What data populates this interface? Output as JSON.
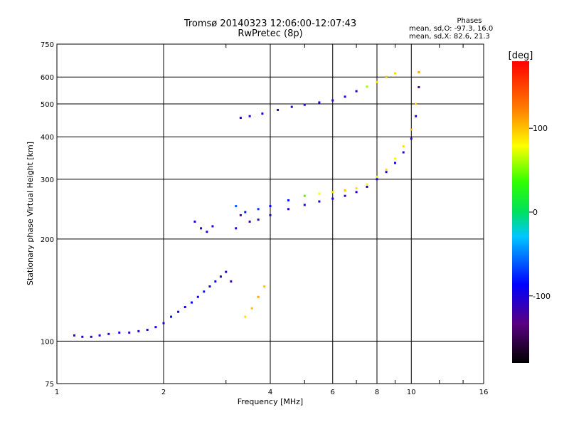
{
  "chart_data": {
    "type": "scatter",
    "title": "Tromsø 20140323 12:06:00-12:07:43",
    "subtitle": "RwPretec (8p)",
    "xlabel": "Frequency [MHz]",
    "ylabel": "Stationary phase Virtual Height [km]",
    "x_scale": "log",
    "y_scale": "log",
    "xlim": [
      1,
      16
    ],
    "ylim": [
      75,
      750
    ],
    "x_ticks": [
      1,
      2,
      4,
      6,
      8,
      10,
      16
    ],
    "x_tick_labels": [
      "1",
      "2",
      "4",
      "6",
      "8",
      "10",
      "16"
    ],
    "y_ticks": [
      75,
      100,
      200,
      300,
      400,
      500,
      600,
      750
    ],
    "y_tick_labels": [
      "75",
      "100",
      "200",
      "300",
      "400",
      "500",
      "600",
      "750"
    ],
    "grid": true,
    "colorbar": {
      "label": "[deg]",
      "range": [
        -180,
        180
      ],
      "ticks": [
        -100,
        0,
        100
      ],
      "tick_labels": [
        "-100",
        "0",
        "100"
      ]
    },
    "phase_stats": {
      "header": "Phases",
      "line_o": "mean, sd,O: -97.3, 16.0",
      "line_x": "mean, sd,X:  82.6, 21.3"
    },
    "series": [
      {
        "values": [
          [
            1.12,
            104,
            -110
          ],
          [
            1.18,
            103,
            -105
          ],
          [
            1.25,
            103,
            -112
          ],
          [
            1.32,
            104,
            -108
          ],
          [
            1.4,
            105,
            -110
          ],
          [
            1.5,
            106,
            -100
          ],
          [
            1.6,
            106,
            -115
          ],
          [
            1.7,
            107,
            -105
          ],
          [
            1.8,
            108,
            -110
          ],
          [
            1.9,
            110,
            -95
          ],
          [
            2.0,
            113,
            -100
          ],
          [
            2.1,
            118,
            -90
          ],
          [
            2.2,
            122,
            -95
          ],
          [
            2.3,
            126,
            -100
          ],
          [
            2.4,
            130,
            -85
          ],
          [
            2.5,
            135,
            -90
          ],
          [
            2.6,
            140,
            -80
          ],
          [
            2.7,
            145,
            -95
          ],
          [
            2.8,
            150,
            -85
          ],
          [
            2.9,
            155,
            -100
          ],
          [
            3.0,
            160,
            -110
          ],
          [
            3.1,
            150,
            -120
          ],
          [
            3.2,
            215,
            -110
          ],
          [
            3.3,
            235,
            -120
          ],
          [
            3.5,
            225,
            -115
          ],
          [
            3.7,
            228,
            -110
          ],
          [
            4.0,
            235,
            -105
          ],
          [
            4.5,
            245,
            -110
          ],
          [
            5.0,
            252,
            -100
          ],
          [
            5.5,
            258,
            -105
          ],
          [
            6.0,
            263,
            -100
          ],
          [
            6.5,
            268,
            -110
          ],
          [
            7.0,
            275,
            -105
          ],
          [
            7.5,
            285,
            -100
          ],
          [
            8.0,
            300,
            -110
          ],
          [
            8.5,
            315,
            -105
          ],
          [
            9.0,
            335,
            -100
          ],
          [
            9.5,
            360,
            -110
          ],
          [
            10.0,
            395,
            -105
          ],
          [
            10.3,
            460,
            -110
          ],
          [
            10.5,
            560,
            -120
          ]
        ]
      },
      {
        "values": [
          [
            3.2,
            250,
            -60
          ],
          [
            3.4,
            240,
            -80
          ],
          [
            3.7,
            245,
            -70
          ],
          [
            4.0,
            250,
            -90
          ],
          [
            4.5,
            260,
            -80
          ],
          [
            5.0,
            268,
            40
          ],
          [
            5.5,
            272,
            80
          ],
          [
            6.0,
            275,
            90
          ],
          [
            6.5,
            278,
            100
          ],
          [
            7.0,
            282,
            90
          ],
          [
            7.5,
            290,
            80
          ],
          [
            8.0,
            305,
            70
          ],
          [
            8.5,
            320,
            90
          ],
          [
            9.0,
            345,
            80
          ],
          [
            9.5,
            375,
            90
          ],
          [
            10.0,
            420,
            100
          ],
          [
            10.3,
            500,
            90
          ],
          [
            10.5,
            620,
            110
          ]
        ]
      },
      {
        "values": [
          [
            3.3,
            455,
            -110
          ],
          [
            3.5,
            460,
            -105
          ],
          [
            3.8,
            468,
            -100
          ],
          [
            4.2,
            480,
            -110
          ],
          [
            4.6,
            490,
            -105
          ],
          [
            5.0,
            497,
            -110
          ],
          [
            5.5,
            505,
            -100
          ],
          [
            6.0,
            512,
            -105
          ],
          [
            6.5,
            525,
            -95
          ],
          [
            7.0,
            545,
            -100
          ],
          [
            7.5,
            562,
            60
          ],
          [
            8.0,
            580,
            90
          ],
          [
            8.5,
            600,
            100
          ],
          [
            9.0,
            615,
            90
          ]
        ]
      },
      {
        "values": [
          [
            2.45,
            225,
            -100
          ],
          [
            2.55,
            215,
            -110
          ],
          [
            2.65,
            210,
            -105
          ],
          [
            2.75,
            218,
            -100
          ]
        ]
      },
      {
        "values": [
          [
            3.4,
            118,
            90
          ],
          [
            3.55,
            125,
            100
          ],
          [
            3.7,
            135,
            110
          ],
          [
            3.85,
            145,
            100
          ]
        ]
      }
    ]
  }
}
